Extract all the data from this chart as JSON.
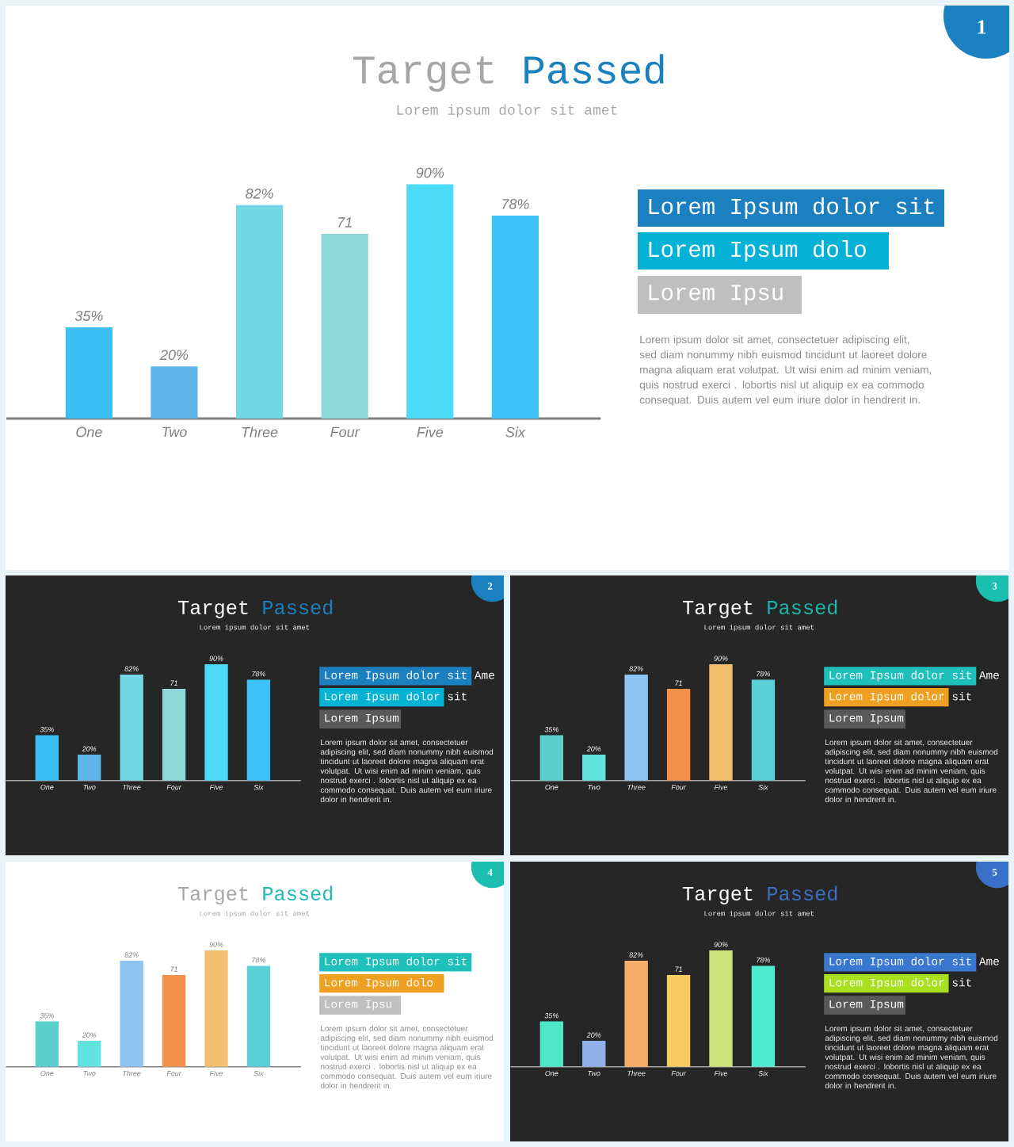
{
  "chart_data": [
    {
      "type": "bar",
      "title": "Target Passed",
      "subtitle": "Lorem ipsum dolor sit amet",
      "categories": [
        "One",
        "Two",
        "Three",
        "Four",
        "Five",
        "Six"
      ],
      "values": [
        35,
        20,
        82,
        71,
        90,
        78
      ],
      "value_labels": [
        "35%",
        "20%",
        "82%",
        "71",
        "90%",
        "78%"
      ],
      "colors": [
        "#3bbef4",
        "#5db5ea",
        "#74d7e6",
        "#8ed6d8",
        "#4cdbf7",
        "#3bc2f6"
      ],
      "annotations": [
        "1",
        "Lorem Ipsum dolor sit",
        "Lorem Ipsum dolo",
        "Lorem Ipsu",
        "Lorem ipsum dolor sit amet, consectetuer adipiscing elit, sed diam nonummy nibh euismod tincidunt ut laoreet dolore magna aliquam erat volutpat. Ut wisi enim ad minim veniam, quis nostrud exerci . lobortis nisl ut aliquip ex ea commodo consequat. Duis autem vel eum iriure dolor in hendrerit in."
      ]
    },
    {
      "type": "bar",
      "title": "Target Passed",
      "subtitle": "Lorem ipsum dolor sit amet",
      "categories": [
        "One",
        "Two",
        "Three",
        "Four",
        "Five",
        "Six"
      ],
      "values": [
        35,
        20,
        82,
        71,
        90,
        78
      ],
      "value_labels": [
        "35%",
        "20%",
        "82%",
        "71",
        "90%",
        "78%"
      ],
      "colors": [
        "#3bbef4",
        "#5db5ea",
        "#74d7e6",
        "#8ed6d8",
        "#4cdbf7",
        "#3bc2f6"
      ],
      "annotations": [
        "2",
        "Lorem Ipsum dolor sit Ame",
        "Lorem Ipsum dolor sit",
        "Lorem Ipsum",
        "Lorem ipsum dolor sit amet, consectetuer adipiscing elit, sed diam nonummy nibh euismod tincidunt ut laoreet dolore magna aliquam erat volutpat. Ut wisi enim ad minim veniam, quis nostrud exerci . lobortis nisl ut aliquip ex ea commodo consequat. Duis autem vel eum iriure dolor in hendrerit in."
      ]
    },
    {
      "type": "bar",
      "title": "Target Passed",
      "subtitle": "Lorem ipsum dolor sit amet",
      "categories": [
        "One",
        "Two",
        "Three",
        "Four",
        "Five",
        "Six"
      ],
      "values": [
        35,
        20,
        82,
        71,
        90,
        78
      ],
      "value_labels": [
        "35%",
        "20%",
        "82%",
        "71",
        "90%",
        "78%"
      ],
      "colors": [
        "#5ccfcc",
        "#63e3e0",
        "#8ec5f2",
        "#f5904c",
        "#f3c070",
        "#5bcfd6"
      ],
      "annotations": [
        "3",
        "Lorem Ipsum dolor sit Ame",
        "Lorem Ipsum dolor sit",
        "Lorem Ipsum",
        "Lorem ipsum dolor sit amet, consectetuer adipiscing elit, sed diam nonummy nibh euismod tincidunt ut laoreet dolore magna aliquam erat volutpat. Ut wisi enim ad minim veniam, quis nostrud exerci . lobortis nisl ut aliquip ex ea commodo consequat. Duis autem vel eum iriure dolor in hendrerit in."
      ]
    },
    {
      "type": "bar",
      "title": "Target Passed",
      "subtitle": "Lorem ipsum dolor sit amet",
      "categories": [
        "One",
        "Two",
        "Three",
        "Four",
        "Five",
        "Six"
      ],
      "values": [
        35,
        20,
        82,
        71,
        90,
        78
      ],
      "value_labels": [
        "35%",
        "20%",
        "82%",
        "71",
        "90%",
        "78%"
      ],
      "colors": [
        "#5ccfcc",
        "#63e3e0",
        "#8ec5f2",
        "#f5904c",
        "#f3c070",
        "#5bcfd6"
      ],
      "annotations": [
        "4",
        "Lorem Ipsum dolor sit",
        "Lorem Ipsum dolo",
        "Lorem Ipsu",
        "Lorem ipsum dolor sit amet, consectetuer adipiscing elit, sed diam nonummy nibh euismod tincidunt ut laoreet dolore magna aliquam erat volutpat. Ut wisi enim ad minim veniam, quis nostrud exerci . lobortis nisl ut aliquip ex ea commodo consequat. Duis autem vel eum iriure dolor in hendrerit in."
      ]
    },
    {
      "type": "bar",
      "title": "Target Passed",
      "subtitle": "Lorem ipsum dolor sit amet",
      "categories": [
        "One",
        "Two",
        "Three",
        "Four",
        "Five",
        "Six"
      ],
      "values": [
        35,
        20,
        82,
        71,
        90,
        78
      ],
      "value_labels": [
        "35%",
        "20%",
        "82%",
        "71",
        "90%",
        "78%"
      ],
      "colors": [
        "#4ee8c8",
        "#8fb0e8",
        "#f7ae6a",
        "#f5cc60",
        "#cce27a",
        "#50ecd0"
      ],
      "annotations": [
        "5",
        "Lorem Ipsum dolor sit Ame",
        "Lorem Ipsum dolor sit",
        "Lorem Ipsum",
        "Lorem ipsum dolor sit amet, consectetuer adipiscing elit, sed diam nonummy nibh euismod tincidunt ut laoreet dolore magna aliquam erat volutpat. Ut wisi enim ad minim veniam, quis nostrud exerci . lobortis nisl ut aliquip ex ea commodo consequat. Duis autem vel eum iriure dolor in hendrerit in."
      ]
    }
  ]
}
